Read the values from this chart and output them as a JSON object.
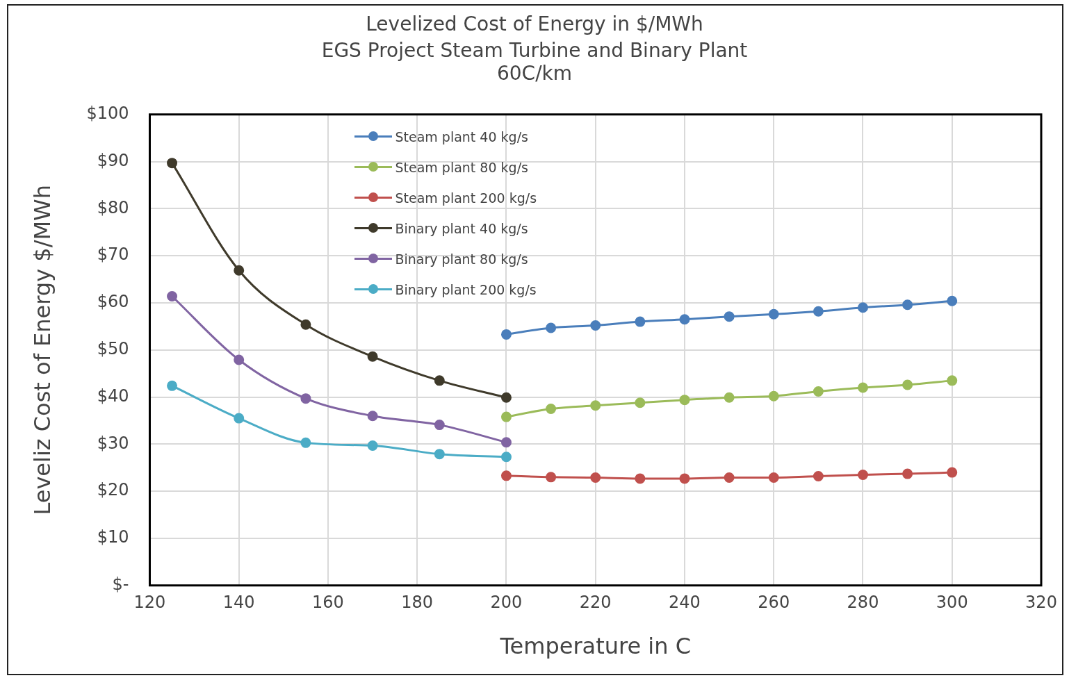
{
  "chart_data": {
    "type": "line",
    "title": "Levelized Cost of Energy in $/MWh",
    "subtitle": "EGS Project Steam Turbine and Binary Plant\n60C/km",
    "xlabel": "Temperature in C",
    "ylabel": "Leveliz Cost of Energy $/MWh",
    "xlim": [
      120,
      320
    ],
    "xticks": [
      120,
      140,
      160,
      180,
      200,
      220,
      240,
      260,
      280,
      300,
      320
    ],
    "ylim": [
      0,
      100
    ],
    "yticks": [
      {
        "value": 0,
        "label": "$-"
      },
      {
        "value": 10,
        "label": "$10"
      },
      {
        "value": 20,
        "label": "$20"
      },
      {
        "value": 30,
        "label": "$30"
      },
      {
        "value": 40,
        "label": "$40"
      },
      {
        "value": 50,
        "label": "$50"
      },
      {
        "value": 60,
        "label": "$60"
      },
      {
        "value": 70,
        "label": "$70"
      },
      {
        "value": 80,
        "label": "$80"
      },
      {
        "value": 90,
        "label": "$90"
      },
      {
        "value": 100,
        "label": "$100"
      }
    ],
    "grid": true,
    "legend": "top left",
    "marker": "circle",
    "line_style": "solid",
    "series": [
      {
        "name": "Steam plant 40 kg/s",
        "color": "#4a7ebb",
        "x": [
          200,
          210,
          220,
          230,
          240,
          250,
          260,
          270,
          280,
          290,
          300
        ],
        "values": [
          53.3,
          54.7,
          55.2,
          56.0,
          56.5,
          57.1,
          57.6,
          58.2,
          59.0,
          59.6,
          60.4
        ]
      },
      {
        "name": "Steam plant 80 kg/s",
        "color": "#9bbb59",
        "x": [
          200,
          210,
          220,
          230,
          240,
          250,
          260,
          270,
          280,
          290,
          300
        ],
        "values": [
          35.8,
          37.5,
          38.2,
          38.8,
          39.4,
          39.9,
          40.2,
          41.2,
          42.0,
          42.6,
          43.5
        ]
      },
      {
        "name": "Steam plant 200 kg/s",
        "color": "#c0504d",
        "x": [
          200,
          210,
          220,
          230,
          240,
          250,
          260,
          270,
          280,
          290,
          300
        ],
        "values": [
          23.3,
          23.0,
          22.9,
          22.7,
          22.7,
          22.9,
          22.9,
          23.2,
          23.5,
          23.7,
          24.0
        ]
      },
      {
        "name": "Binary plant 40 kg/s",
        "color": "#3f3a2b",
        "x": [
          125,
          140,
          155,
          170,
          185,
          200
        ],
        "values": [
          89.7,
          66.9,
          55.4,
          48.6,
          43.5,
          39.9
        ]
      },
      {
        "name": "Binary plant 80 kg/s",
        "color": "#8064a2",
        "x": [
          125,
          140,
          155,
          170,
          185,
          200
        ],
        "values": [
          61.4,
          47.9,
          39.7,
          36.0,
          34.1,
          30.4
        ]
      },
      {
        "name": "Binary plant 200 kg/s",
        "color": "#4bacc6",
        "x": [
          125,
          140,
          155,
          170,
          185,
          200
        ],
        "values": [
          42.4,
          35.5,
          30.3,
          29.7,
          27.9,
          27.3
        ]
      }
    ]
  }
}
